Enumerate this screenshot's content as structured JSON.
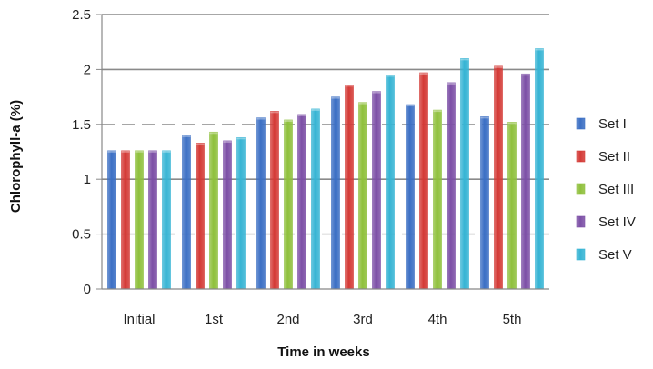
{
  "chart_data": {
    "type": "bar",
    "title": "",
    "xlabel": "Time in weeks",
    "ylabel": "Chlorophyll-a (%)",
    "ylim": [
      0,
      2.5
    ],
    "yticks": [
      "0",
      "0.5",
      "1",
      "1.5",
      "2",
      "2.5"
    ],
    "categories": [
      "Initial",
      "1st",
      "2nd",
      "3rd",
      "4th",
      "5th"
    ],
    "grid": "horizontal dashed",
    "legend_position": "right",
    "series": [
      {
        "name": "Set I",
        "color": "#3b6fc4",
        "values": [
          1.26,
          1.4,
          1.56,
          1.75,
          1.68,
          1.57
        ]
      },
      {
        "name": "Set II",
        "color": "#d43a36",
        "values": [
          1.26,
          1.33,
          1.62,
          1.86,
          1.97,
          2.03
        ]
      },
      {
        "name": "Set III",
        "color": "#8fc03c",
        "values": [
          1.26,
          1.43,
          1.54,
          1.7,
          1.63,
          1.52
        ]
      },
      {
        "name": "Set IV",
        "color": "#7c4fa6",
        "values": [
          1.26,
          1.35,
          1.59,
          1.8,
          1.88,
          1.96
        ]
      },
      {
        "name": "Set V",
        "color": "#36b4d4",
        "values": [
          1.26,
          1.38,
          1.64,
          1.95,
          2.1,
          2.19
        ]
      }
    ]
  }
}
